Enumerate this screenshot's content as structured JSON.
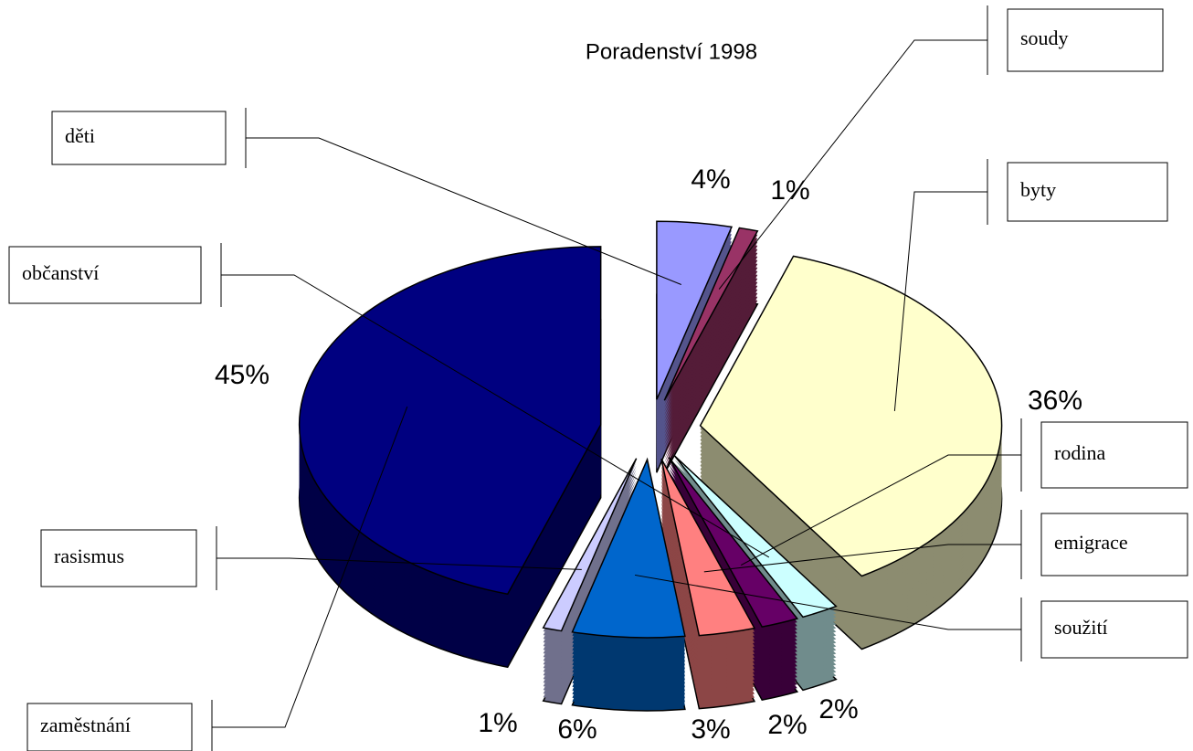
{
  "chart_data": {
    "type": "pie",
    "title": "Poradenství 1998",
    "categories": [
      "děti",
      "soudy",
      "byty",
      "občanství",
      "rodina",
      "emigrace",
      "soužití",
      "rasismus",
      "zaměstnání"
    ],
    "values": [
      4,
      1,
      36,
      2,
      2,
      3,
      6,
      1,
      45
    ],
    "value_labels": [
      "4%",
      "1%",
      "36%",
      "2%",
      "2%",
      "3%",
      "6%",
      "1%",
      "45%"
    ],
    "colors": [
      "#9999ff",
      "#993366",
      "#ffffcc",
      "#ccffff",
      "#660066",
      "#ff8080",
      "#0066cc",
      "#ccccff",
      "#000080"
    ]
  }
}
